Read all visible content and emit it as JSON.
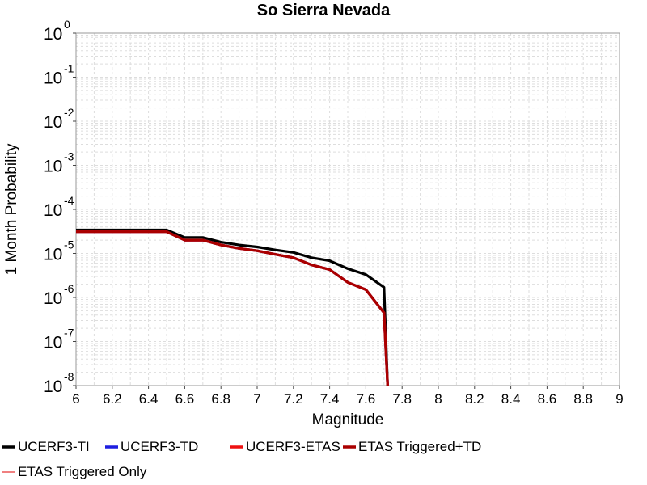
{
  "chart_data": {
    "type": "line",
    "title": "So Sierra Nevada",
    "xlabel": "Magnitude",
    "ylabel": "1 Month Probability",
    "xlim": [
      6,
      9
    ],
    "ylim": [
      1e-08,
      1
    ],
    "yscale": "log",
    "grid": true,
    "legend_position": "bottom",
    "x_ticks": [
      "6",
      "6.2",
      "6.4",
      "6.6",
      "6.8",
      "7",
      "7.2",
      "7.4",
      "7.6",
      "7.8",
      "8",
      "8.2",
      "8.4",
      "8.6",
      "8.8",
      "9"
    ],
    "y_ticks": [
      {
        "base": "10",
        "exp": "0"
      },
      {
        "base": "10",
        "exp": "-1"
      },
      {
        "base": "10",
        "exp": "-2"
      },
      {
        "base": "10",
        "exp": "-3"
      },
      {
        "base": "10",
        "exp": "-4"
      },
      {
        "base": "10",
        "exp": "-5"
      },
      {
        "base": "10",
        "exp": "-6"
      },
      {
        "base": "10",
        "exp": "-7"
      },
      {
        "base": "10",
        "exp": "-8"
      }
    ],
    "series": [
      {
        "name": "UCERF3-TI",
        "color": "#000000",
        "x": [
          6.0,
          6.1,
          6.2,
          6.3,
          6.4,
          6.5,
          6.6,
          6.7,
          6.8,
          6.9,
          7.0,
          7.1,
          7.2,
          7.3,
          7.4,
          7.5,
          7.6,
          7.7,
          7.72
        ],
        "y": [
          3.4e-05,
          3.4e-05,
          3.4e-05,
          3.4e-05,
          3.4e-05,
          3.4e-05,
          2.3e-05,
          2.3e-05,
          1.8e-05,
          1.55e-05,
          1.4e-05,
          1.2e-05,
          1.05e-05,
          8e-06,
          6.8e-06,
          4.5e-06,
          3.3e-06,
          1.7e-06,
          1e-08
        ]
      },
      {
        "name": "UCERF3-TD",
        "color": "#1e1ee0",
        "x": [
          6.0,
          6.1,
          6.2,
          6.3,
          6.4,
          6.5,
          6.6,
          6.7,
          6.8,
          6.9,
          7.0,
          7.1,
          7.2,
          7.3,
          7.4,
          7.5,
          7.6,
          7.7,
          7.72
        ],
        "y": [
          3.1e-05,
          3.1e-05,
          3.1e-05,
          3.1e-05,
          3.1e-05,
          3.1e-05,
          2e-05,
          2e-05,
          1.55e-05,
          1.3e-05,
          1.15e-05,
          9.5e-06,
          8e-06,
          5.5e-06,
          4.3e-06,
          2.2e-06,
          1.5e-06,
          4.5e-07,
          1e-08
        ]
      },
      {
        "name": "UCERF3-ETAS",
        "color": "#ee1111",
        "x": [
          6.0,
          6.1,
          6.2,
          6.3,
          6.4,
          6.5,
          6.6,
          6.7,
          6.8,
          6.9,
          7.0,
          7.1,
          7.2,
          7.3,
          7.4,
          7.5,
          7.6,
          7.7,
          7.72
        ],
        "y": [
          3.1e-05,
          3.1e-05,
          3.1e-05,
          3.1e-05,
          3.1e-05,
          3.1e-05,
          2e-05,
          2e-05,
          1.55e-05,
          1.3e-05,
          1.15e-05,
          9.5e-06,
          8e-06,
          5.5e-06,
          4.3e-06,
          2.2e-06,
          1.5e-06,
          4.5e-07,
          1e-08
        ]
      },
      {
        "name": "ETAS Triggered+TD",
        "color": "#aa0000",
        "x": [
          6.0,
          6.1,
          6.2,
          6.3,
          6.4,
          6.5,
          6.6,
          6.7,
          6.8,
          6.9,
          7.0,
          7.1,
          7.2,
          7.3,
          7.4,
          7.5,
          7.6,
          7.7,
          7.72
        ],
        "y": [
          3.1e-05,
          3.1e-05,
          3.1e-05,
          3.1e-05,
          3.1e-05,
          3.1e-05,
          2e-05,
          2e-05,
          1.55e-05,
          1.3e-05,
          1.15e-05,
          9.5e-06,
          8e-06,
          5.5e-06,
          4.3e-06,
          2.2e-06,
          1.5e-06,
          4.5e-07,
          1e-08
        ]
      },
      {
        "name": "ETAS Triggered Only",
        "color": "#f08080",
        "x": [],
        "y": []
      }
    ]
  }
}
